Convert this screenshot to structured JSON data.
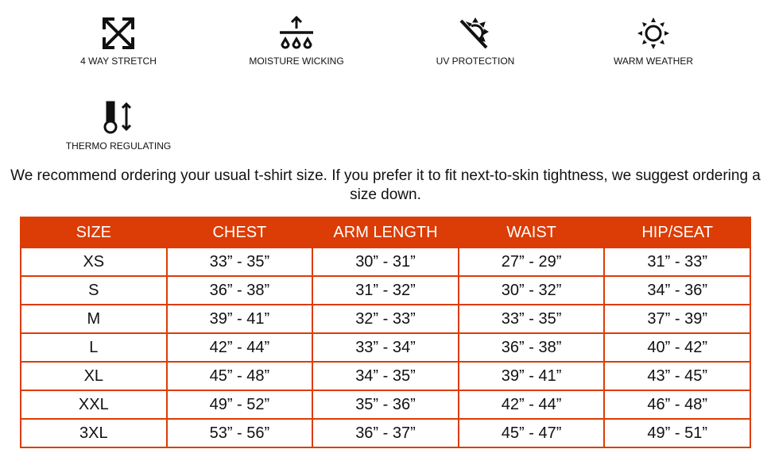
{
  "features": [
    {
      "icon": "arrows-expand-icon",
      "label": "4 WAY STRETCH"
    },
    {
      "icon": "moisture-drops-icon",
      "label": "MOISTURE WICKING"
    },
    {
      "icon": "uv-sun-blocked-icon",
      "label": "UV PROTECTION"
    },
    {
      "icon": "sun-icon",
      "label": "WARM WEATHER"
    },
    {
      "icon": "thermometer-arrows-icon",
      "label": "THERMO REGULATING"
    }
  ],
  "note": "We recommend ordering your usual t-shirt size. If you prefer it to fit next-to-skin tightness, we suggest ordering a size down.",
  "colors": {
    "accent": "#dc3c05"
  },
  "table": {
    "headers": [
      "SIZE",
      "CHEST",
      "ARM LENGTH",
      "WAIST",
      "HIP/SEAT"
    ],
    "rows": [
      [
        "XS",
        "33” - 35”",
        "30” - 31”",
        "27” - 29”",
        "31” - 33”"
      ],
      [
        "S",
        "36” - 38”",
        "31” - 32”",
        "30” - 32”",
        "34” - 36”"
      ],
      [
        "M",
        "39” - 41”",
        "32” - 33”",
        "33” - 35”",
        "37” - 39”"
      ],
      [
        "L",
        "42” - 44”",
        "33” - 34”",
        "36” - 38”",
        "40” - 42”"
      ],
      [
        "XL",
        "45” - 48”",
        "34” - 35”",
        "39” - 41”",
        "43” - 45”"
      ],
      [
        "XXL",
        "49” - 52”",
        "35” - 36”",
        "42” - 44”",
        "46” - 48”"
      ],
      [
        "3XL",
        "53” - 56”",
        "36” - 37”",
        "45” - 47”",
        "49” - 51”"
      ]
    ]
  }
}
